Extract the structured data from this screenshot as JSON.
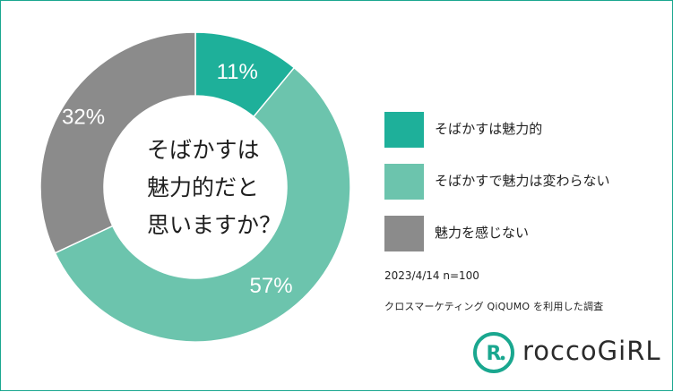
{
  "chart_data": {
    "type": "pie",
    "center_text": [
      "そばかすは",
      "魅力的だと",
      "思いますか？"
    ],
    "categories": [
      "そばかすは魅力的",
      "そばかすで魅力は変わらない",
      "魅力を感じない"
    ],
    "values": [
      11,
      57,
      32
    ],
    "value_labels": [
      "11%",
      "57%",
      "32%"
    ],
    "colors": [
      "#1eb09a",
      "#6cc4ad",
      "#8b8b8b"
    ],
    "legend_position": "right"
  },
  "survey": {
    "date_n": "2023/4/14  n=100",
    "source": "クロスマーケティング QiQUMO を利用した調査"
  },
  "brand": {
    "name": "roccoGiRL",
    "accent": "#1aa78f"
  }
}
